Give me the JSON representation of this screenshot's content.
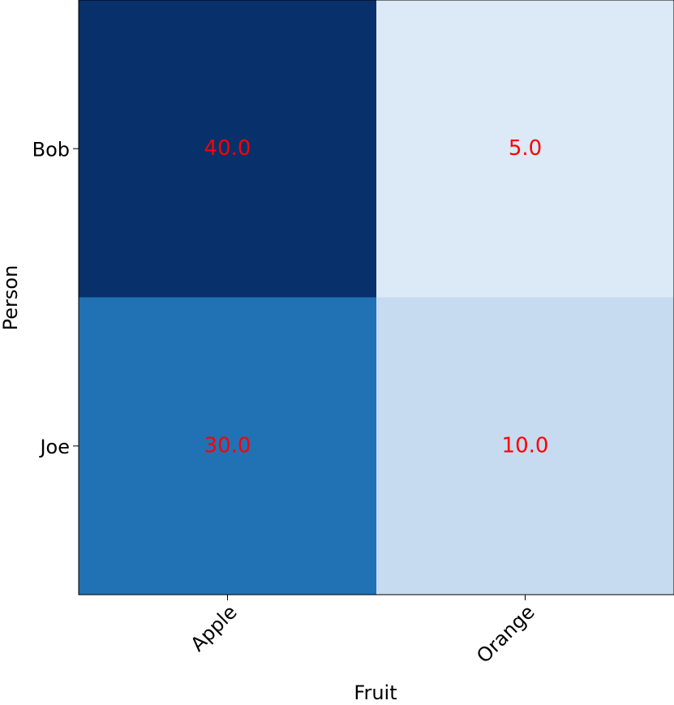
{
  "chart_data": {
    "type": "heatmap",
    "x_label": "Fruit",
    "y_label": "Person",
    "x_categories": [
      "Apple",
      "Orange"
    ],
    "y_categories": [
      "Bob",
      "Joe"
    ],
    "values": [
      [
        40,
        5
      ],
      [
        30,
        10
      ]
    ],
    "value_labels": [
      [
        "40.0",
        "5.0"
      ],
      [
        "30.0",
        "10.0"
      ]
    ],
    "colors": [
      [
        "#08306b",
        "#dce9f6"
      ],
      [
        "#2171b5",
        "#c6dbef"
      ]
    ],
    "label_color": "#ff0000"
  }
}
